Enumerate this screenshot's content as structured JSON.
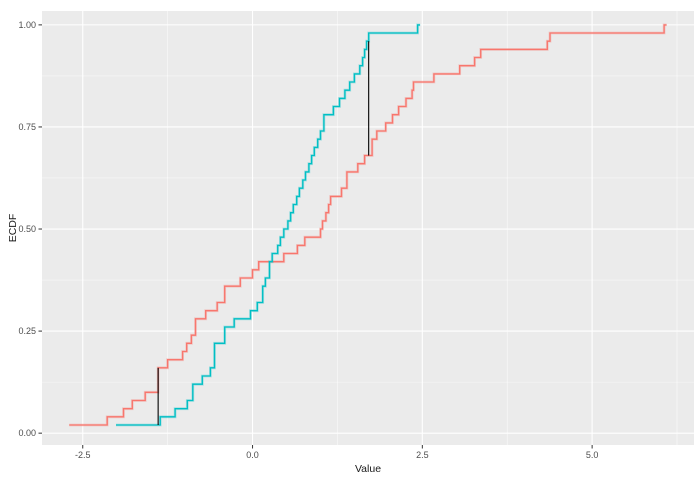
{
  "chart_data": {
    "type": "line",
    "subtype": "ecdf-step",
    "title": "",
    "xlabel": "Value",
    "ylabel": "ECDF",
    "x_domain": [
      -3.1,
      6.5
    ],
    "y_domain": [
      -0.029,
      1.034
    ],
    "grid": true,
    "legend": "none",
    "panel_bg": "#ebebeb",
    "grid_color": "#ffffff",
    "tick_color": "#333333",
    "tick_label_color": "#4d4d4d",
    "x_ticks": [
      {
        "v": -2.5,
        "label": "-2.5"
      },
      {
        "v": 0.0,
        "label": "0.0"
      },
      {
        "v": 2.5,
        "label": "2.5"
      },
      {
        "v": 5.0,
        "label": "5.0"
      }
    ],
    "y_ticks": [
      {
        "v": 0.0,
        "label": "0.00"
      },
      {
        "v": 0.25,
        "label": "0.25"
      },
      {
        "v": 0.5,
        "label": "0.50"
      },
      {
        "v": 0.75,
        "label": "0.75"
      },
      {
        "v": 1.0,
        "label": "1.00"
      }
    ],
    "x_minor": [
      -1.25,
      1.25,
      3.75,
      6.25
    ],
    "y_minor": [
      0.125,
      0.375,
      0.625,
      0.875
    ],
    "series": [
      {
        "name": "red-sample-ecdf",
        "color": "#F8766D",
        "steps": [
          [
            -2.7,
            0.02
          ],
          [
            -2.14,
            0.04
          ],
          [
            -1.9,
            0.06
          ],
          [
            -1.77,
            0.08
          ],
          [
            -1.58,
            0.1
          ],
          [
            -1.39,
            0.16
          ],
          [
            -1.25,
            0.18
          ],
          [
            -1.03,
            0.2
          ],
          [
            -0.97,
            0.22
          ],
          [
            -0.9,
            0.24
          ],
          [
            -0.84,
            0.28
          ],
          [
            -0.69,
            0.3
          ],
          [
            -0.52,
            0.32
          ],
          [
            -0.41,
            0.36
          ],
          [
            -0.18,
            0.38
          ],
          [
            0.0,
            0.4
          ],
          [
            0.09,
            0.42
          ],
          [
            0.46,
            0.44
          ],
          [
            0.66,
            0.46
          ],
          [
            0.77,
            0.48
          ],
          [
            1.0,
            0.5
          ],
          [
            1.03,
            0.52
          ],
          [
            1.08,
            0.54
          ],
          [
            1.12,
            0.56
          ],
          [
            1.15,
            0.58
          ],
          [
            1.31,
            0.6
          ],
          [
            1.39,
            0.64
          ],
          [
            1.55,
            0.66
          ],
          [
            1.65,
            0.68
          ],
          [
            1.76,
            0.72
          ],
          [
            1.83,
            0.74
          ],
          [
            1.96,
            0.76
          ],
          [
            2.06,
            0.78
          ],
          [
            2.15,
            0.8
          ],
          [
            2.26,
            0.82
          ],
          [
            2.35,
            0.84
          ],
          [
            2.37,
            0.86
          ],
          [
            2.67,
            0.88
          ],
          [
            3.05,
            0.9
          ],
          [
            3.27,
            0.92
          ],
          [
            3.36,
            0.94
          ],
          [
            4.34,
            0.96
          ],
          [
            4.38,
            0.98
          ],
          [
            6.06,
            1.0
          ]
        ]
      },
      {
        "name": "teal-sample-ecdf",
        "color": "#00BFC4",
        "steps": [
          [
            -2.01,
            0.02
          ],
          [
            -1.36,
            0.04
          ],
          [
            -1.14,
            0.06
          ],
          [
            -0.96,
            0.08
          ],
          [
            -0.88,
            0.12
          ],
          [
            -0.74,
            0.14
          ],
          [
            -0.62,
            0.16
          ],
          [
            -0.56,
            0.22
          ],
          [
            -0.41,
            0.26
          ],
          [
            -0.27,
            0.28
          ],
          [
            -0.03,
            0.3
          ],
          [
            0.07,
            0.32
          ],
          [
            0.15,
            0.36
          ],
          [
            0.19,
            0.38
          ],
          [
            0.25,
            0.42
          ],
          [
            0.29,
            0.44
          ],
          [
            0.37,
            0.46
          ],
          [
            0.41,
            0.48
          ],
          [
            0.46,
            0.5
          ],
          [
            0.52,
            0.52
          ],
          [
            0.56,
            0.54
          ],
          [
            0.6,
            0.56
          ],
          [
            0.65,
            0.58
          ],
          [
            0.69,
            0.6
          ],
          [
            0.74,
            0.62
          ],
          [
            0.78,
            0.64
          ],
          [
            0.83,
            0.66
          ],
          [
            0.87,
            0.68
          ],
          [
            0.91,
            0.7
          ],
          [
            0.96,
            0.72
          ],
          [
            1.0,
            0.74
          ],
          [
            1.05,
            0.78
          ],
          [
            1.19,
            0.8
          ],
          [
            1.28,
            0.82
          ],
          [
            1.36,
            0.84
          ],
          [
            1.43,
            0.86
          ],
          [
            1.5,
            0.88
          ],
          [
            1.58,
            0.9
          ],
          [
            1.62,
            0.92
          ],
          [
            1.65,
            0.94
          ],
          [
            1.68,
            0.96
          ],
          [
            1.71,
            0.98
          ],
          [
            2.43,
            1.0
          ]
        ]
      }
    ],
    "ks_segments": [
      {
        "x": 1.71,
        "y_from": 0.68,
        "y_to": 0.96,
        "color": "#000000"
      },
      {
        "x": -1.39,
        "y_from": 0.02,
        "y_to": 0.16,
        "color": "#000000"
      }
    ]
  }
}
